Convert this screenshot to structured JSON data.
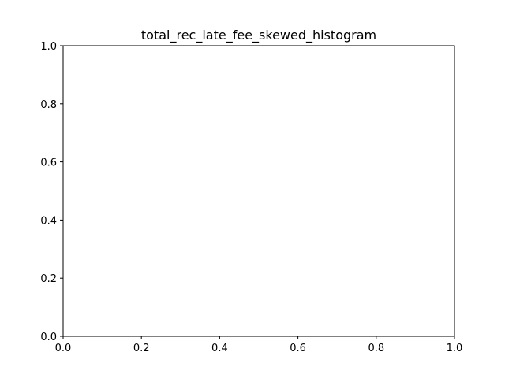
{
  "chart_data": {
    "type": "bar",
    "title": "total_rec_late_fee_skewed_histogram",
    "xlabel": "",
    "ylabel": "",
    "xlim": [
      0.0,
      1.0
    ],
    "ylim": [
      0.0,
      1.0
    ],
    "x_ticks": [
      "0.0",
      "0.2",
      "0.4",
      "0.6",
      "0.8",
      "1.0"
    ],
    "y_ticks": [
      "0.0",
      "0.2",
      "0.4",
      "0.6",
      "0.8",
      "1.0"
    ],
    "bins": [],
    "counts": [],
    "grid": false,
    "legend": "none"
  }
}
